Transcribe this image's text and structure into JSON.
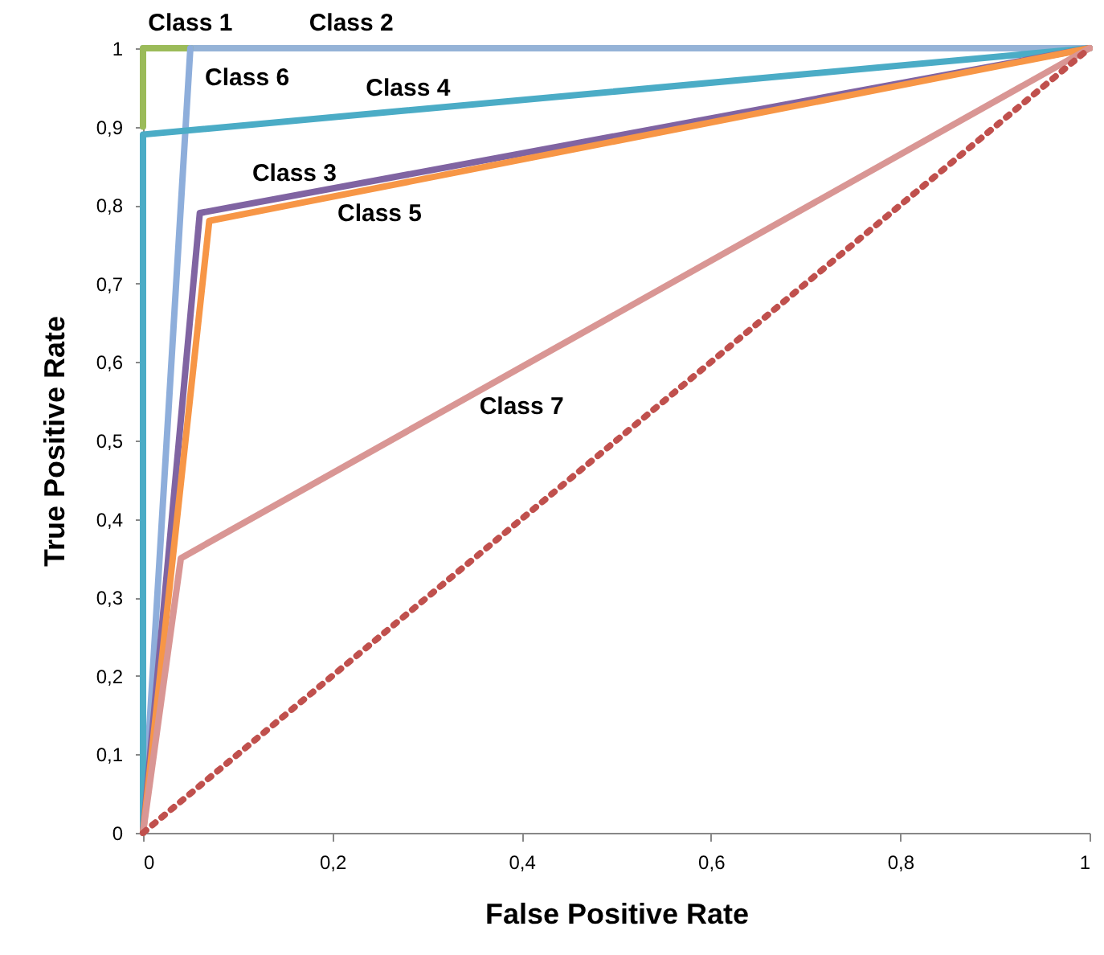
{
  "chart_data": {
    "type": "line",
    "xlabel": "False Positive Rate",
    "ylabel": "True Positive Rate",
    "xlim": [
      0,
      1
    ],
    "ylim": [
      0,
      1
    ],
    "xticks": [
      0,
      {
        "value": 0.2,
        "label": "0,2"
      },
      {
        "value": 0.4,
        "label": "0,4"
      },
      {
        "value": 0.6,
        "label": "0,6"
      },
      {
        "value": 0.8,
        "label": "0,8"
      },
      1
    ],
    "yticks": [
      0,
      {
        "value": 0.1,
        "label": "0,1"
      },
      {
        "value": 0.2,
        "label": "0,2"
      },
      {
        "value": 0.3,
        "label": "0,3"
      },
      {
        "value": 0.4,
        "label": "0,4"
      },
      {
        "value": 0.5,
        "label": "0,5"
      },
      {
        "value": 0.6,
        "label": "0,6"
      },
      {
        "value": 0.7,
        "label": "0,7"
      },
      {
        "value": 0.8,
        "label": "0,8"
      },
      {
        "value": 0.9,
        "label": "0,9"
      },
      1
    ],
    "grid": false,
    "marker": "none",
    "series": [
      {
        "name": "Class 2",
        "color": "#95b3d7",
        "x": [
          0,
          1
        ],
        "values": [
          1,
          1
        ]
      },
      {
        "name": "Class 1",
        "color": "#9bbb59",
        "x": [
          0,
          0,
          0.05
        ],
        "values": [
          0.9,
          1,
          1
        ]
      },
      {
        "name": "Class 6",
        "color": "#8eaedb",
        "x": [
          0,
          0.05
        ],
        "values": [
          0,
          1
        ]
      },
      {
        "name": "Class 4",
        "color": "#4bacc6",
        "x": [
          0,
          0,
          1
        ],
        "values": [
          0,
          0.89,
          1
        ]
      },
      {
        "name": "Class 3",
        "color": "#8064a2",
        "x": [
          0,
          0.06,
          1
        ],
        "values": [
          0,
          0.79,
          1
        ]
      },
      {
        "name": "Class 5",
        "color": "#f79646",
        "x": [
          0,
          0.07,
          1
        ],
        "values": [
          0,
          0.78,
          1
        ]
      },
      {
        "name": "Class 7",
        "color": "#d99694",
        "x": [
          0,
          0.04,
          1
        ],
        "values": [
          0,
          0.35,
          1
        ]
      },
      {
        "color": "#c0504d",
        "line_style": "dotted",
        "x": [
          0,
          1
        ],
        "values": [
          0,
          1
        ]
      }
    ]
  }
}
